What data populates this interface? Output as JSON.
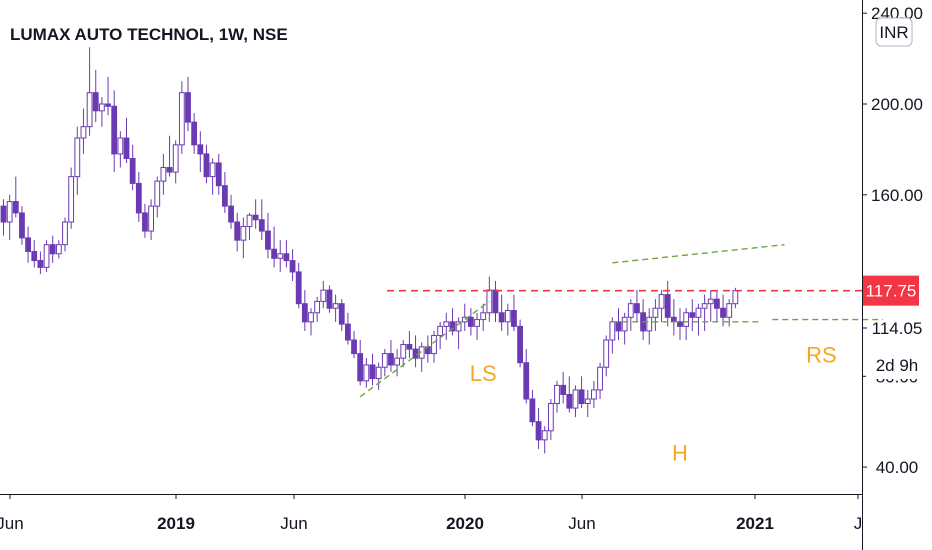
{
  "chart_data": {
    "type": "candlestick",
    "title": "LUMAX AUTO TECHNOL, 1W, NSE",
    "currency": "INR",
    "price_axis": {
      "ticks": [
        {
          "value": 240,
          "label": "240.00"
        },
        {
          "value": 200,
          "label": "200.00"
        },
        {
          "value": 160,
          "label": "160.00"
        },
        {
          "value": 80,
          "label": "80.00"
        },
        {
          "value": 40,
          "label": "40.00"
        }
      ],
      "ylim": [
        32,
        243
      ]
    },
    "time_axis": {
      "ticks": [
        {
          "label": "Jun",
          "bold": false
        },
        {
          "label": "2019",
          "bold": true
        },
        {
          "label": "Jun",
          "bold": false
        },
        {
          "label": "2020",
          "bold": true
        },
        {
          "label": "Jun",
          "bold": false
        },
        {
          "label": "2021",
          "bold": true
        },
        {
          "label": "J",
          "bold": false
        }
      ]
    },
    "last_price": {
      "value": 117.75,
      "label": "117.75",
      "color": "#f23645"
    },
    "marker_price": {
      "value": 114.05,
      "label": "114.05"
    },
    "countdown": "2d 9h",
    "colors": {
      "up": "#ffffff",
      "down": "#6a3ab2",
      "border": "#6a3ab2",
      "resistance": "#f23645",
      "trendline": "#6ea63c",
      "annotation": "#f5a623"
    },
    "resistance_level": 117.75,
    "annotations": [
      {
        "text": "LS",
        "week": 78,
        "price": 78
      },
      {
        "text": "H",
        "week": 110,
        "price": 43
      },
      {
        "text": "RS",
        "week": 133,
        "price": 86
      }
    ],
    "candles": [
      [
        155,
        158,
        142,
        148
      ],
      [
        148,
        160,
        140,
        157
      ],
      [
        157,
        168,
        150,
        152
      ],
      [
        152,
        155,
        138,
        141
      ],
      [
        141,
        146,
        130,
        135
      ],
      [
        135,
        140,
        128,
        131
      ],
      [
        131,
        135,
        125,
        128
      ],
      [
        128,
        140,
        126,
        138
      ],
      [
        138,
        142,
        130,
        134
      ],
      [
        134,
        140,
        132,
        138
      ],
      [
        138,
        150,
        135,
        148
      ],
      [
        148,
        172,
        145,
        168
      ],
      [
        168,
        190,
        160,
        185
      ],
      [
        185,
        198,
        178,
        190
      ],
      [
        190,
        225,
        186,
        205
      ],
      [
        205,
        215,
        192,
        197
      ],
      [
        197,
        203,
        190,
        200
      ],
      [
        200,
        212,
        195,
        199
      ],
      [
        199,
        206,
        170,
        178
      ],
      [
        178,
        188,
        172,
        185
      ],
      [
        185,
        194,
        174,
        176
      ],
      [
        176,
        182,
        162,
        165
      ],
      [
        165,
        170,
        148,
        152
      ],
      [
        152,
        156,
        141,
        144
      ],
      [
        144,
        158,
        140,
        155
      ],
      [
        155,
        168,
        150,
        166
      ],
      [
        166,
        178,
        160,
        172
      ],
      [
        172,
        186,
        168,
        170
      ],
      [
        170,
        184,
        165,
        182
      ],
      [
        182,
        210,
        178,
        205
      ],
      [
        205,
        212,
        188,
        192
      ],
      [
        192,
        196,
        178,
        182
      ],
      [
        182,
        188,
        170,
        178
      ],
      [
        178,
        182,
        165,
        168
      ],
      [
        168,
        176,
        160,
        174
      ],
      [
        174,
        178,
        160,
        164
      ],
      [
        164,
        170,
        152,
        155
      ],
      [
        155,
        160,
        145,
        148
      ],
      [
        148,
        152,
        135,
        140
      ],
      [
        140,
        150,
        132,
        146
      ],
      [
        146,
        152,
        140,
        151
      ],
      [
        151,
        158,
        145,
        149
      ],
      [
        149,
        158,
        140,
        144
      ],
      [
        144,
        152,
        132,
        136
      ],
      [
        136,
        146,
        128,
        132
      ],
      [
        132,
        140,
        126,
        134
      ],
      [
        134,
        140,
        128,
        131
      ],
      [
        131,
        136,
        122,
        126
      ],
      [
        126,
        130,
        110,
        112
      ],
      [
        112,
        118,
        100,
        104
      ],
      [
        104,
        110,
        98,
        108
      ],
      [
        108,
        115,
        104,
        113
      ],
      [
        113,
        122,
        110,
        118
      ],
      [
        118,
        120,
        108,
        110
      ],
      [
        110,
        116,
        104,
        112
      ],
      [
        112,
        114,
        100,
        103
      ],
      [
        103,
        108,
        94,
        96
      ],
      [
        96,
        100,
        88,
        90
      ],
      [
        90,
        96,
        76,
        78
      ],
      [
        78,
        88,
        75,
        85
      ],
      [
        85,
        90,
        76,
        79
      ],
      [
        79,
        86,
        74,
        84
      ],
      [
        84,
        92,
        80,
        90
      ],
      [
        90,
        96,
        82,
        85
      ],
      [
        85,
        92,
        80,
        88
      ],
      [
        88,
        96,
        84,
        94
      ],
      [
        94,
        100,
        88,
        92
      ],
      [
        92,
        98,
        84,
        88
      ],
      [
        88,
        95,
        82,
        93
      ],
      [
        93,
        98,
        86,
        90
      ],
      [
        90,
        100,
        86,
        98
      ],
      [
        98,
        104,
        92,
        102
      ],
      [
        102,
        108,
        96,
        104
      ],
      [
        104,
        110,
        98,
        100
      ],
      [
        100,
        106,
        92,
        104
      ],
      [
        104,
        112,
        100,
        106
      ],
      [
        106,
        110,
        98,
        102
      ],
      [
        102,
        108,
        96,
        105
      ],
      [
        105,
        112,
        100,
        108
      ],
      [
        108,
        124,
        104,
        118
      ],
      [
        118,
        122,
        104,
        108
      ],
      [
        108,
        116,
        100,
        104
      ],
      [
        104,
        112,
        98,
        109
      ],
      [
        109,
        116,
        100,
        102
      ],
      [
        102,
        105,
        84,
        86
      ],
      [
        86,
        92,
        68,
        70
      ],
      [
        70,
        74,
        58,
        60
      ],
      [
        60,
        66,
        48,
        52
      ],
      [
        52,
        58,
        46,
        56
      ],
      [
        56,
        70,
        52,
        68
      ],
      [
        68,
        78,
        64,
        76
      ],
      [
        76,
        82,
        68,
        72
      ],
      [
        72,
        80,
        64,
        66
      ],
      [
        66,
        76,
        62,
        74
      ],
      [
        74,
        80,
        66,
        68
      ],
      [
        68,
        74,
        62,
        70
      ],
      [
        70,
        78,
        66,
        74
      ],
      [
        74,
        86,
        70,
        84
      ],
      [
        84,
        98,
        80,
        96
      ],
      [
        96,
        106,
        90,
        104
      ],
      [
        104,
        110,
        96,
        100
      ],
      [
        100,
        108,
        94,
        106
      ],
      [
        106,
        114,
        100,
        112
      ],
      [
        112,
        118,
        104,
        108
      ],
      [
        108,
        114,
        96,
        100
      ],
      [
        100,
        110,
        94,
        106
      ],
      [
        106,
        114,
        100,
        110
      ],
      [
        110,
        118,
        104,
        116
      ],
      [
        116,
        122,
        102,
        106
      ],
      [
        106,
        114,
        98,
        104
      ],
      [
        104,
        110,
        96,
        102
      ],
      [
        102,
        110,
        96,
        108
      ],
      [
        108,
        114,
        100,
        106
      ],
      [
        106,
        112,
        98,
        110
      ],
      [
        110,
        116,
        100,
        112
      ],
      [
        112,
        118,
        104,
        114
      ],
      [
        114,
        118,
        104,
        110
      ],
      [
        110,
        116,
        102,
        106
      ],
      [
        106,
        114,
        102,
        112
      ],
      [
        112,
        119,
        110,
        117.75
      ]
    ]
  }
}
